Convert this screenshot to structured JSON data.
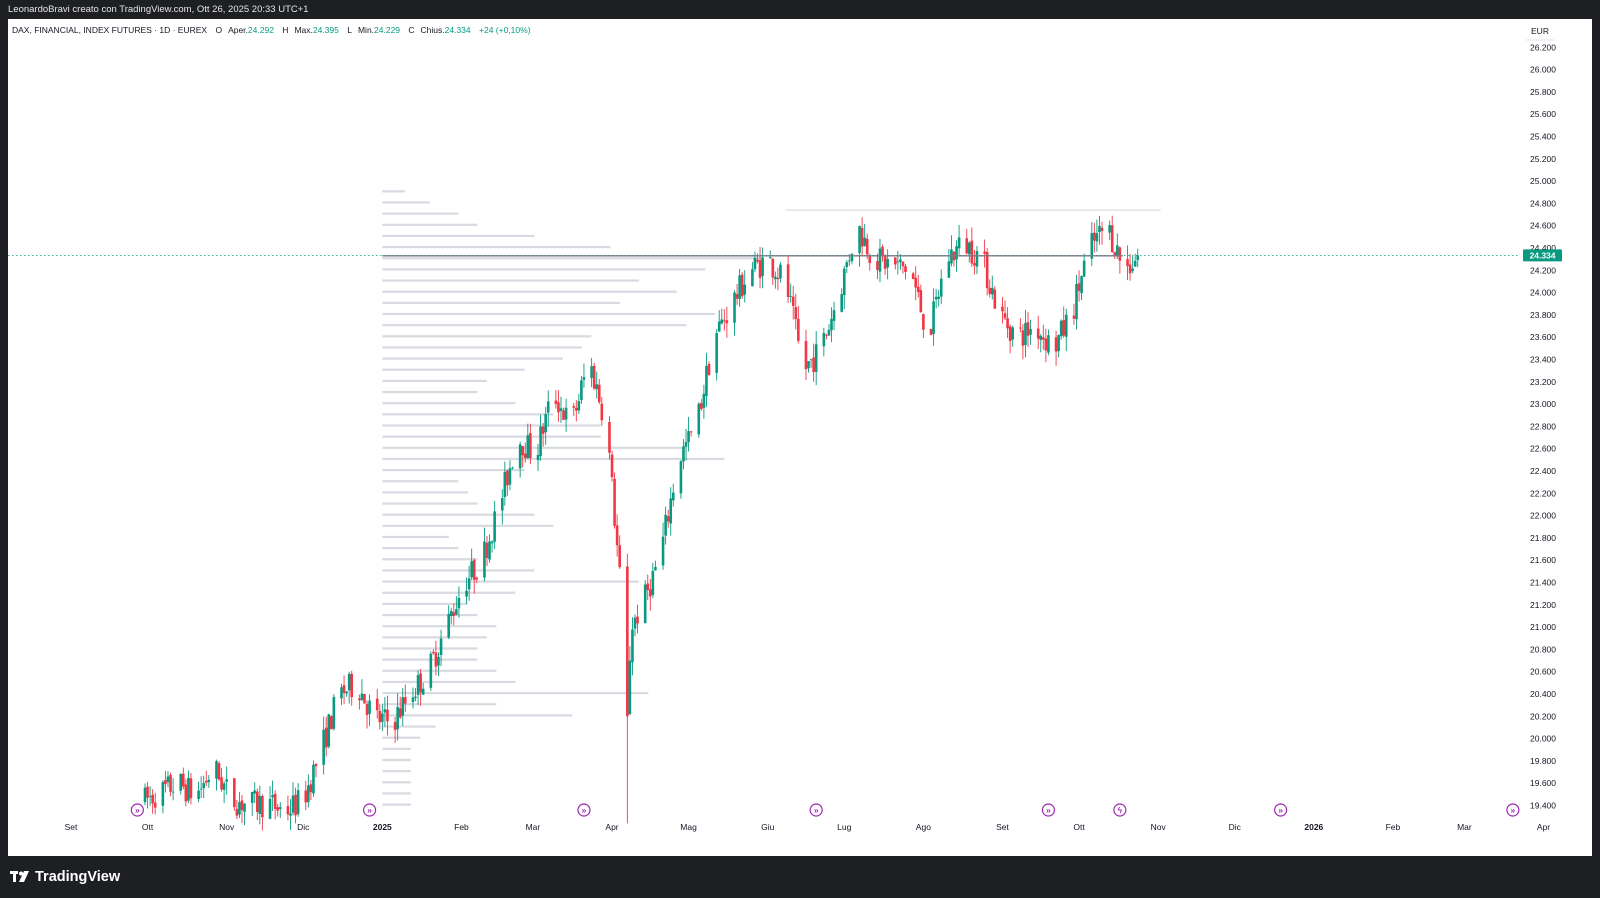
{
  "header": {
    "credit": "LeonardoBravi creato con TradingView.com, Ott 26, 2025 20:33 UTC+1"
  },
  "legend": {
    "symbol": "DAX, FINANCIAL, INDEX FUTURES · 1D · EUREX",
    "o_label": "O",
    "o_prefix": "Aper.",
    "o_value": "24.292",
    "h_label": "H",
    "h_prefix": "Max.",
    "h_value": "24.395",
    "l_label": "L",
    "l_prefix": "Min.",
    "l_value": "24.229",
    "c_label": "C",
    "c_prefix": "Chius.",
    "c_value": "24.334",
    "change": "+24 (+0,10%)"
  },
  "footer": {
    "brand": "TradingView"
  },
  "colors": {
    "up": "#089981",
    "down": "#f23645",
    "last_price_tag": "#089981",
    "profile": "#d1d4dc",
    "poc": "#787b86",
    "event_icon": "#9c27b0"
  },
  "chart_data": {
    "type": "candlestick",
    "currency": "EUR",
    "last_price": 24334,
    "last_price_label": "24.334",
    "y_ticks": [
      "26.200",
      "26.000",
      "25.800",
      "25.600",
      "25.400",
      "25.200",
      "25.000",
      "24.800",
      "24.600",
      "24.400",
      "24.200",
      "24.000",
      "23.800",
      "23.600",
      "23.400",
      "23.200",
      "23.000",
      "22.800",
      "22.600",
      "22.400",
      "22.200",
      "22.000",
      "21.800",
      "21.600",
      "21.400",
      "21.200",
      "21.000",
      "20.800",
      "20.600",
      "20.400",
      "20.200",
      "20.000",
      "19.800",
      "19.600",
      "19.400"
    ],
    "y_tick_values": [
      26200,
      26000,
      25800,
      25600,
      25400,
      25200,
      25000,
      24800,
      24600,
      24400,
      24200,
      24000,
      23800,
      23600,
      23400,
      23200,
      23000,
      22800,
      22600,
      22400,
      22200,
      22000,
      21800,
      21600,
      21400,
      21200,
      21000,
      20800,
      20600,
      20400,
      20200,
      20000,
      19800,
      19600,
      19400
    ],
    "x_labels": [
      "Set",
      "Ott",
      "Nov",
      "Dic",
      "2025",
      "Feb",
      "Mar",
      "Apr",
      "Mag",
      "Giu",
      "Lug",
      "Ago",
      "Set",
      "Ott",
      "Nov",
      "Dic",
      "2026",
      "Feb",
      "Mar",
      "Apr"
    ],
    "x_label_dates": [
      "2024-09-01",
      "2024-10-01",
      "2024-11-01",
      "2024-12-01",
      "2025-01-01",
      "2025-02-01",
      "2025-03-01",
      "2025-04-01",
      "2025-05-01",
      "2025-06-01",
      "2025-07-01",
      "2025-08-01",
      "2025-09-01",
      "2025-10-01",
      "2025-11-01",
      "2025-12-01",
      "2026-01-01",
      "2026-02-01",
      "2026-03-01",
      "2026-04-01"
    ],
    "bold_labels": [
      "2025",
      "2026"
    ],
    "poc_price": 24330,
    "resistance_price": 24740,
    "resistance_range": [
      "2025-06-08",
      "2025-11-02"
    ],
    "volume_profile_start": "2025-01-01",
    "event_icons": [
      {
        "date": "2024-09-27",
        "glyph": "»"
      },
      {
        "date": "2024-12-27",
        "glyph": "»"
      },
      {
        "date": "2025-03-21",
        "glyph": "»"
      },
      {
        "date": "2025-06-20",
        "glyph": "»"
      },
      {
        "date": "2025-09-19",
        "glyph": "»"
      },
      {
        "date": "2025-10-17",
        "glyph": "ϟ"
      },
      {
        "date": "2025-12-19",
        "glyph": "»"
      },
      {
        "date": "2026-03-20",
        "glyph": "»"
      }
    ],
    "anchors": [
      [
        "2024-09-30",
        19450
      ],
      [
        "2024-10-06",
        19520
      ],
      [
        "2024-10-13",
        19600
      ],
      [
        "2024-10-20",
        19490
      ],
      [
        "2024-10-27",
        19740
      ],
      [
        "2024-11-03",
        19450
      ],
      [
        "2024-11-10",
        19410
      ],
      [
        "2024-11-17",
        19420
      ],
      [
        "2024-11-24",
        19350
      ],
      [
        "2024-12-01",
        19450
      ],
      [
        "2024-12-08",
        19900
      ],
      [
        "2024-12-15",
        20400
      ],
      [
        "2024-12-22",
        20500
      ],
      [
        "2024-12-29",
        20180
      ],
      [
        "2025-01-05",
        20150
      ],
      [
        "2025-01-12",
        20400
      ],
      [
        "2025-01-19",
        20600
      ],
      [
        "2025-01-26",
        21000
      ],
      [
        "2025-02-02",
        21400
      ],
      [
        "2025-02-09",
        21600
      ],
      [
        "2025-02-16",
        22100
      ],
      [
        "2025-02-23",
        22700
      ],
      [
        "2025-03-02",
        22550
      ],
      [
        "2025-03-09",
        23100
      ],
      [
        "2025-03-16",
        22800
      ],
      [
        "2025-03-23",
        23400
      ],
      [
        "2025-03-30",
        22800
      ],
      [
        "2025-04-06",
        20900
      ],
      [
        "2025-04-13",
        21200
      ],
      [
        "2025-04-20",
        21650
      ],
      [
        "2025-04-27",
        22500
      ],
      [
        "2025-05-04",
        22800
      ],
      [
        "2025-05-11",
        23600
      ],
      [
        "2025-05-18",
        23900
      ],
      [
        "2025-05-25",
        24200
      ],
      [
        "2025-06-01",
        24300
      ],
      [
        "2025-06-08",
        24100
      ],
      [
        "2025-06-15",
        23300
      ],
      [
        "2025-06-22",
        23500
      ],
      [
        "2025-06-29",
        24000
      ],
      [
        "2025-07-06",
        24600
      ],
      [
        "2025-07-13",
        24300
      ],
      [
        "2025-07-20",
        24250
      ],
      [
        "2025-07-27",
        24200
      ],
      [
        "2025-08-03",
        23600
      ],
      [
        "2025-08-10",
        24300
      ],
      [
        "2025-08-17",
        24450
      ],
      [
        "2025-08-24",
        24300
      ],
      [
        "2025-08-31",
        23800
      ],
      [
        "2025-09-07",
        23600
      ],
      [
        "2025-09-14",
        23700
      ],
      [
        "2025-09-21",
        23500
      ],
      [
        "2025-09-28",
        23800
      ],
      [
        "2025-10-05",
        24400
      ],
      [
        "2025-10-12",
        24600
      ],
      [
        "2025-10-19",
        24200
      ],
      [
        "2025-10-24",
        24334
      ]
    ],
    "profile": [
      [
        19400,
        150
      ],
      [
        19500,
        150
      ],
      [
        19600,
        150
      ],
      [
        19700,
        150
      ],
      [
        19800,
        150
      ],
      [
        19900,
        150
      ],
      [
        20000,
        200
      ],
      [
        20100,
        280
      ],
      [
        20200,
        1000
      ],
      [
        20300,
        600
      ],
      [
        20400,
        1400
      ],
      [
        20500,
        700
      ],
      [
        20600,
        600
      ],
      [
        20700,
        500
      ],
      [
        20800,
        500
      ],
      [
        20900,
        550
      ],
      [
        21000,
        600
      ],
      [
        21100,
        500
      ],
      [
        21200,
        450
      ],
      [
        21300,
        700
      ],
      [
        21400,
        1350
      ],
      [
        21500,
        800
      ],
      [
        21600,
        500
      ],
      [
        21700,
        400
      ],
      [
        21800,
        350
      ],
      [
        21900,
        900
      ],
      [
        22000,
        800
      ],
      [
        22100,
        500
      ],
      [
        22200,
        450
      ],
      [
        22300,
        400
      ],
      [
        22400,
        750
      ],
      [
        22500,
        1800
      ],
      [
        22600,
        1600
      ],
      [
        22700,
        1150
      ],
      [
        22800,
        1150
      ],
      [
        22900,
        900
      ],
      [
        23000,
        700
      ],
      [
        23100,
        500
      ],
      [
        23200,
        550
      ],
      [
        23300,
        750
      ],
      [
        23400,
        950
      ],
      [
        23500,
        1050
      ],
      [
        23600,
        1100
      ],
      [
        23700,
        1600
      ],
      [
        23800,
        1750
      ],
      [
        23900,
        1250
      ],
      [
        24000,
        1550
      ],
      [
        24100,
        1350
      ],
      [
        24200,
        1700
      ],
      [
        24300,
        2000
      ],
      [
        24400,
        1200
      ],
      [
        24500,
        800
      ],
      [
        24600,
        500
      ],
      [
        24700,
        400
      ],
      [
        24800,
        250
      ],
      [
        24900,
        120
      ]
    ]
  }
}
